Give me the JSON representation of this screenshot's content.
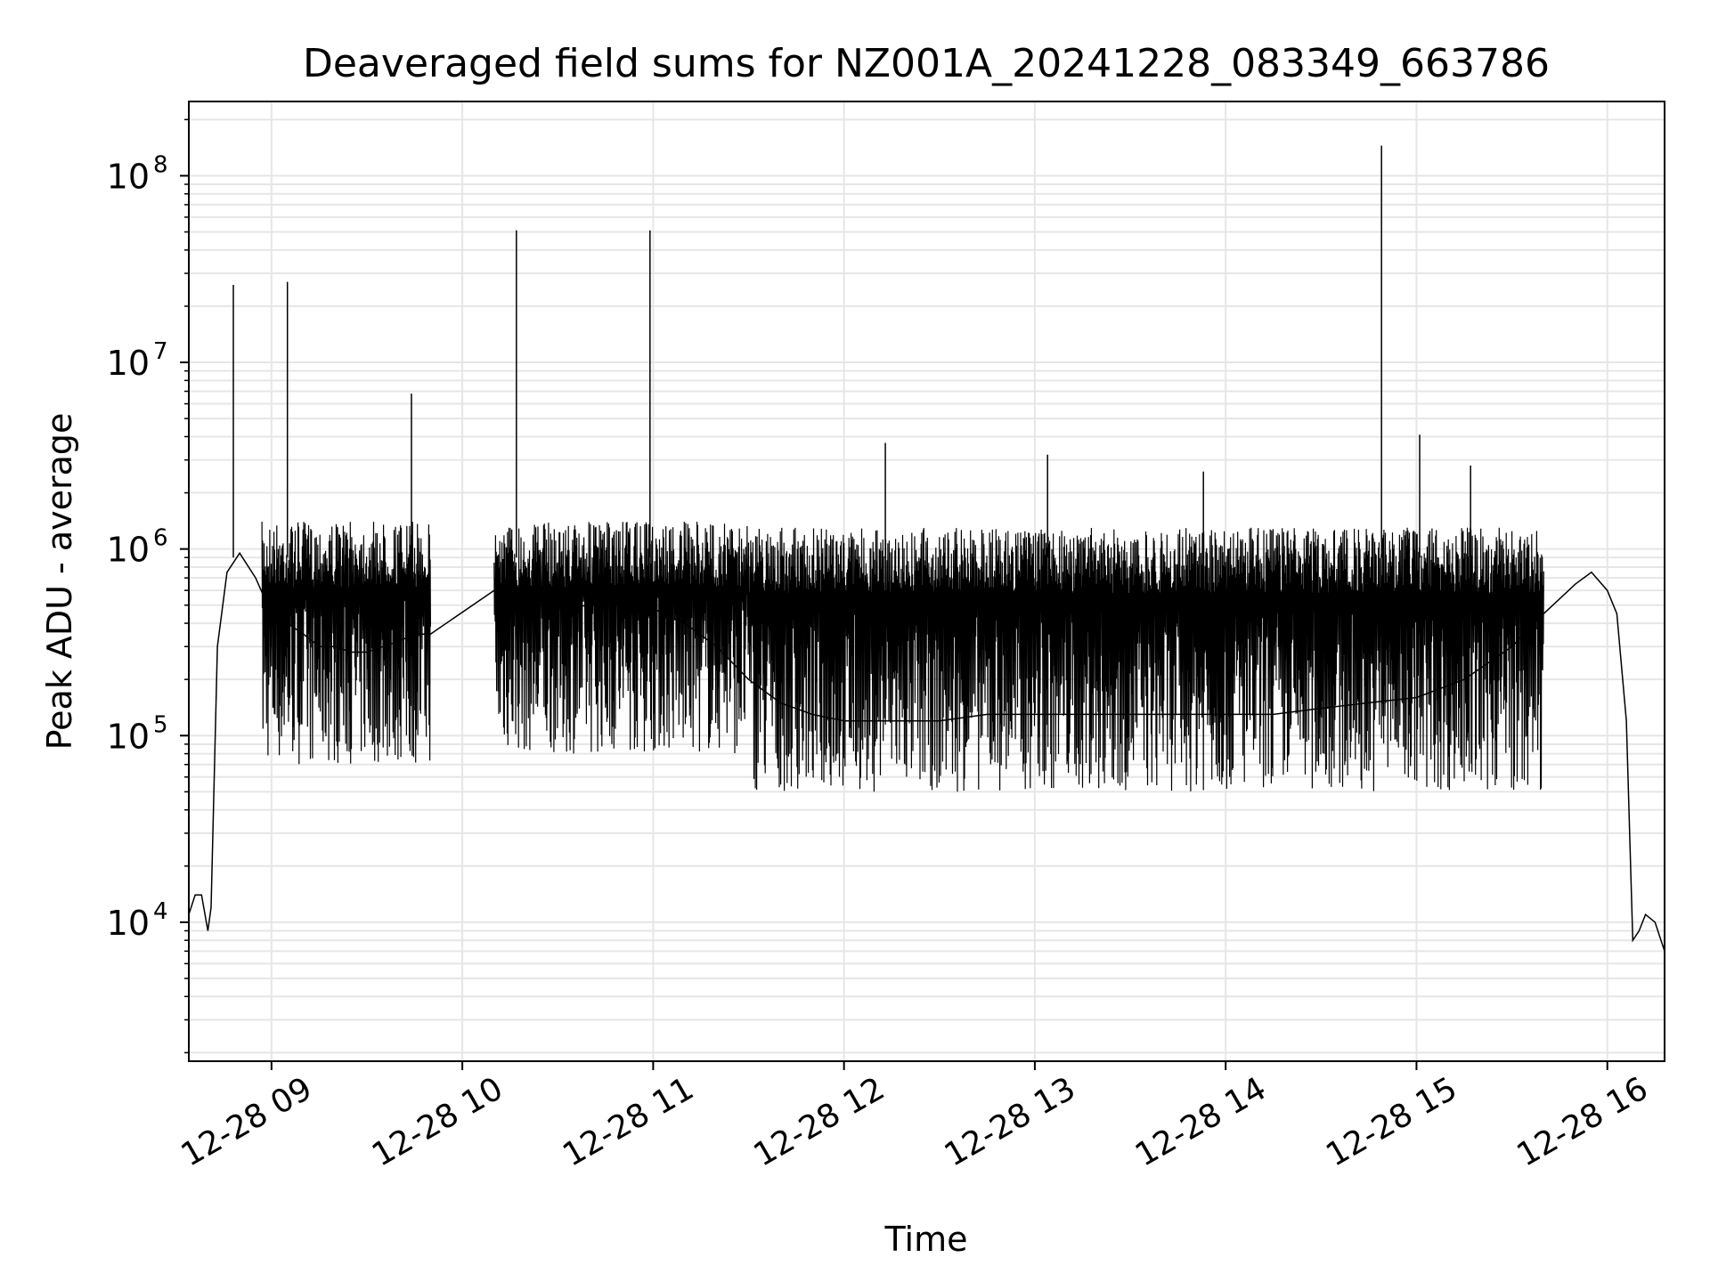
{
  "chart_data": {
    "type": "line",
    "title": "Deaveraged field sums for NZ001A_20241228_083349_663786",
    "xlabel": "Time",
    "ylabel": "Peak ADU - average",
    "yscale": "log",
    "xlim": [
      "12-28 08:34",
      "12-28 16:18"
    ],
    "ylim": [
      1800,
      250000000
    ],
    "grid": true,
    "x_ticks": [
      "12-28 09",
      "12-28 10",
      "12-28 11",
      "12-28 12",
      "12-28 13",
      "12-28 14",
      "12-28 15",
      "12-28 16"
    ],
    "y_ticks": [
      {
        "base": "10",
        "exp": "4",
        "value": 10000
      },
      {
        "base": "10",
        "exp": "5",
        "value": 100000
      },
      {
        "base": "10",
        "exp": "6",
        "value": 1000000
      },
      {
        "base": "10",
        "exp": "7",
        "value": 10000000
      },
      {
        "base": "10",
        "exp": "8",
        "value": 100000000
      }
    ],
    "line_color": "#000000",
    "grid_color": "#e6e6e6",
    "series": [
      {
        "name": "",
        "x": [
          "12-28 08:34",
          "12-28 08:36",
          "12-28 08:38",
          "12-28 08:40",
          "12-28 08:41",
          "12-28 08:43",
          "12-28 08:46",
          "12-28 08:50",
          "12-28 08:55",
          "12-28 09:00",
          "12-28 09:05",
          "12-28 09:10",
          "12-28 09:15",
          "12-28 09:20",
          "12-28 09:25",
          "12-28 09:30",
          "12-28 09:35",
          "12-28 09:40",
          "12-28 09:45",
          "12-28 09:50",
          "12-28 10:10",
          "12-28 10:15",
          "12-28 10:20",
          "12-28 10:25",
          "12-28 10:30",
          "12-28 10:40",
          "12-28 10:50",
          "12-28 11:00",
          "12-28 11:10",
          "12-28 11:20",
          "12-28 11:30",
          "12-28 11:40",
          "12-28 11:50",
          "12-28 12:00",
          "12-28 12:15",
          "12-28 12:30",
          "12-28 12:45",
          "12-28 13:00",
          "12-28 13:15",
          "12-28 13:30",
          "12-28 13:45",
          "12-28 14:00",
          "12-28 14:15",
          "12-28 14:30",
          "12-28 14:45",
          "12-28 15:00",
          "12-28 15:15",
          "12-28 15:30",
          "12-28 15:40",
          "12-28 15:50",
          "12-28 15:55",
          "12-28 16:00",
          "12-28 16:03",
          "12-28 16:06",
          "12-28 16:08",
          "12-28 16:10",
          "12-28 16:12",
          "12-28 16:15",
          "12-28 16:18"
        ],
        "y": [
          11000,
          14000,
          14000,
          9000,
          12000,
          300000,
          750000,
          950000,
          700000,
          450000,
          400000,
          350000,
          300000,
          300000,
          280000,
          280000,
          300000,
          320000,
          350000,
          350000,
          600000,
          550000,
          500000,
          500000,
          480000,
          500000,
          500000,
          480000,
          400000,
          300000,
          200000,
          150000,
          130000,
          120000,
          120000,
          120000,
          130000,
          130000,
          130000,
          130000,
          130000,
          130000,
          130000,
          140000,
          150000,
          160000,
          200000,
          300000,
          450000,
          650000,
          750000,
          600000,
          450000,
          120000,
          8000,
          9000,
          11000,
          10000,
          7000
        ]
      }
    ],
    "spikes": [
      {
        "x": "12-28 08:48",
        "y": 26000000
      },
      {
        "x": "12-28 09:05",
        "y": 27000000
      },
      {
        "x": "12-28 09:44",
        "y": 6800000
      },
      {
        "x": "12-28 10:17",
        "y": 51000000
      },
      {
        "x": "12-28 10:59",
        "y": 51000000
      },
      {
        "x": "12-28 12:13",
        "y": 3700000
      },
      {
        "x": "12-28 13:04",
        "y": 3200000
      },
      {
        "x": "12-28 13:53",
        "y": 2600000
      },
      {
        "x": "12-28 14:49",
        "y": 145000000
      },
      {
        "x": "12-28 15:01",
        "y": 4100000
      },
      {
        "x": "12-28 15:17",
        "y": 2800000
      }
    ],
    "dense_band": [
      {
        "x0": "12-28 08:57",
        "x1": "12-28 09:50",
        "upper": 1400000,
        "lower": 70000
      },
      {
        "x0": "12-28 10:10",
        "x1": "12-28 11:30",
        "upper": 1400000,
        "lower": 80000
      },
      {
        "x0": "12-28 11:30",
        "x1": "12-28 15:40",
        "upper": 1300000,
        "lower": 50000
      }
    ]
  }
}
